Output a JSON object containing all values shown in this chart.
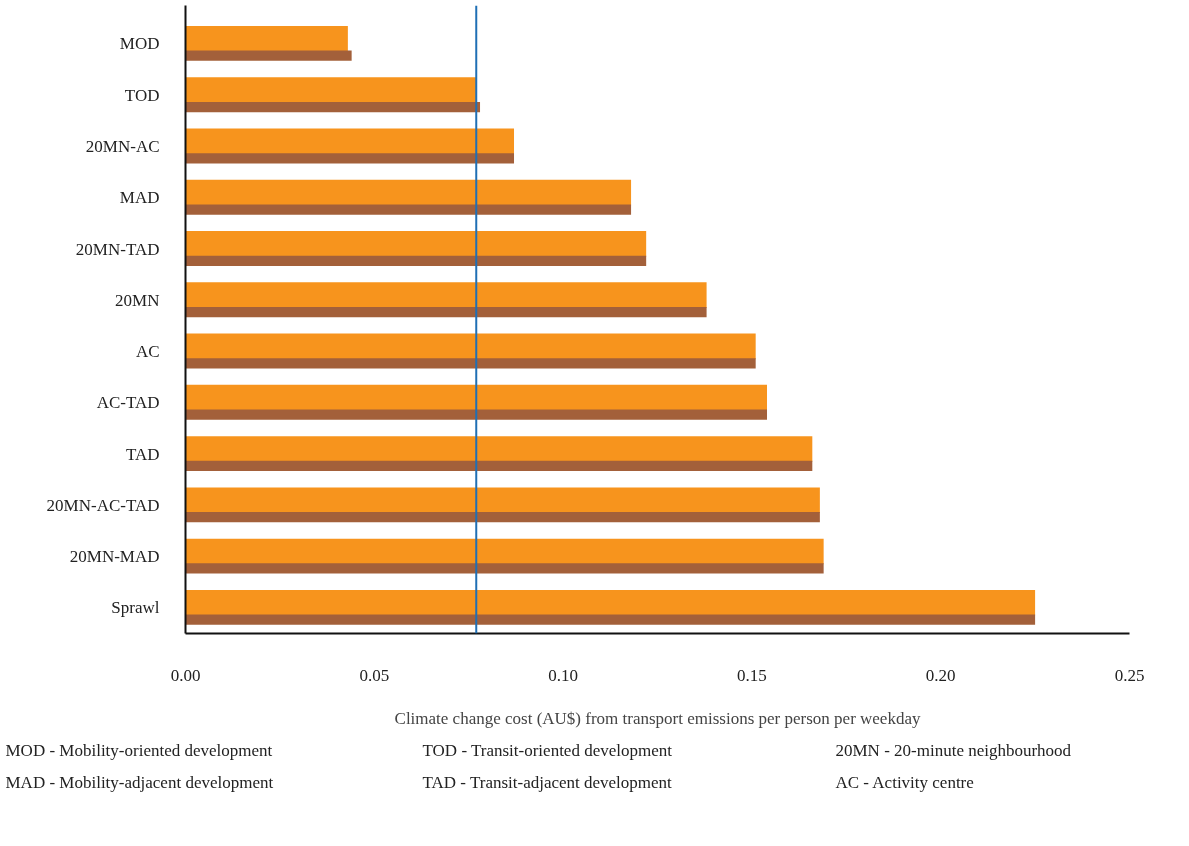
{
  "chart_data": {
    "type": "bar",
    "orientation": "horizontal",
    "xlabel": "Climate change cost (AU$) from transport emissions per person per weekday",
    "categories": [
      "MOD",
      "TOD",
      "20MN-AC",
      "MAD",
      "20MN-TAD",
      "20MN",
      "AC",
      "AC-TAD",
      "TAD",
      "20MN-AC-TAD",
      "20MN-MAD",
      "Sprawl"
    ],
    "series": [
      {
        "color": "#f7941d",
        "values": [
          0.043,
          0.077,
          0.087,
          0.118,
          0.122,
          0.138,
          0.151,
          0.154,
          0.166,
          0.168,
          0.169,
          0.225
        ]
      },
      {
        "color": "#a3603a",
        "values": [
          0.044,
          0.078,
          0.087,
          0.118,
          0.122,
          0.138,
          0.151,
          0.154,
          0.166,
          0.168,
          0.169,
          0.225
        ]
      }
    ],
    "xlim": [
      0,
      0.25
    ],
    "xticks": [
      {
        "value": 0,
        "label": "0.00"
      },
      {
        "value": 0.05,
        "label": "0.05"
      },
      {
        "value": 0.1,
        "label": "0.10"
      },
      {
        "value": 0.15,
        "label": "0.15"
      },
      {
        "value": 0.2,
        "label": "0.20"
      },
      {
        "value": 0.25,
        "label": "0.25"
      }
    ],
    "ref_lines": [
      {
        "axis": "x",
        "value": 0.077,
        "color": "#1f6fb5"
      }
    ],
    "grid": false,
    "annotations": [
      "MOD - Mobility-oriented development",
      "TOD - Transit-oriented development",
      "20MN - 20-minute neighbourhood",
      "MAD - Mobility-adjacent development",
      "TAD - Transit-adjacent development",
      "AC - Activity centre"
    ]
  }
}
